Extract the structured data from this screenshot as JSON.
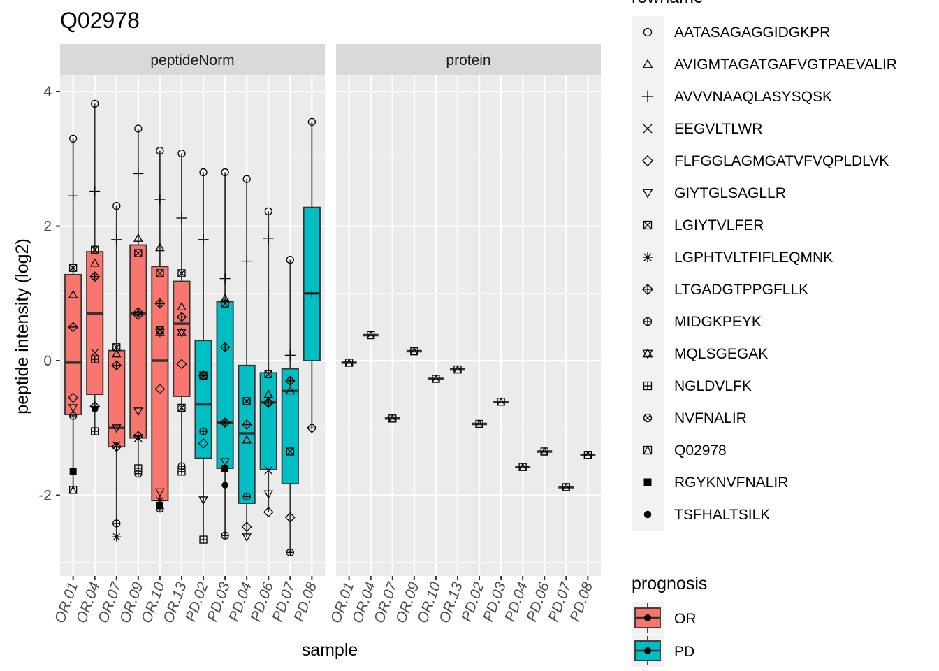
{
  "title": "Q02978",
  "chart_data": {
    "type": "box",
    "title": "Q02978",
    "xlabel": "sample",
    "ylabel": "peptide intensity (log2)",
    "ylim": [
      -3.2,
      4.25
    ],
    "yticks": [
      -2,
      0,
      2,
      4
    ],
    "grid": true,
    "legend_position": "right",
    "panels": [
      "peptideNorm",
      "protein"
    ],
    "categories": [
      "OR.01",
      "OR.04",
      "OR.07",
      "OR.09",
      "OR.10",
      "OR.13",
      "PD.02",
      "PD.03",
      "PD.04",
      "PD.06",
      "PD.07",
      "PD.08"
    ],
    "prognosis": [
      "OR",
      "OR",
      "OR",
      "OR",
      "OR",
      "OR",
      "PD",
      "PD",
      "PD",
      "PD",
      "PD",
      "PD"
    ],
    "colors": {
      "OR": "#F8766D",
      "PD": "#00BFC4"
    },
    "rownames": [
      {
        "name": "AATASAGAGGIDGKPR",
        "shape": "circle"
      },
      {
        "name": "AVIGMTAGATGAFVGTPAEVALIR",
        "shape": "triangle"
      },
      {
        "name": "AVVVNAAQLASYSQSK",
        "shape": "plus"
      },
      {
        "name": "EEGVLTLWR",
        "shape": "cross"
      },
      {
        "name": "FLFGGLAGMGATVFVQPLDLVK",
        "shape": "diamond"
      },
      {
        "name": "GIYTGLSAGLLR",
        "shape": "triangle-down"
      },
      {
        "name": "LGIYTVLFER",
        "shape": "square-cross"
      },
      {
        "name": "LGPHTVLTFIFLEQMNK",
        "shape": "asterisk"
      },
      {
        "name": "LTGADGTPPGFLLK",
        "shape": "diamond-plus"
      },
      {
        "name": "MIDGKPEYK",
        "shape": "circle-plus"
      },
      {
        "name": "MQLSGEGAK",
        "shape": "star-of-david"
      },
      {
        "name": "NGLDVLFK",
        "shape": "square-plus"
      },
      {
        "name": "NVFNALIR",
        "shape": "circle-cross"
      },
      {
        "name": "Q02978",
        "shape": "square-triangle"
      },
      {
        "name": "RGYKNVFNALIR",
        "shape": "square-filled"
      },
      {
        "name": "TSFHALTSILK",
        "shape": "circle-filled"
      }
    ],
    "legends": {
      "shape_title": "rowname",
      "fill_title": "prognosis",
      "fill_items": [
        "OR",
        "PD"
      ]
    },
    "peptideNorm": {
      "boxes": [
        {
          "sample": "OR.01",
          "q1": -0.8,
          "median": -0.03,
          "q3": 1.28,
          "lower": -1.9,
          "upper": 3.3
        },
        {
          "sample": "OR.04",
          "q1": -0.5,
          "median": 0.7,
          "q3": 1.62,
          "lower": -1.05,
          "upper": 3.82
        },
        {
          "sample": "OR.07",
          "q1": -1.28,
          "median": -1.0,
          "q3": 0.15,
          "lower": -2.62,
          "upper": 2.3
        },
        {
          "sample": "OR.09",
          "q1": -1.15,
          "median": 0.7,
          "q3": 1.72,
          "lower": -1.68,
          "upper": 3.45
        },
        {
          "sample": "OR.10",
          "q1": -2.08,
          "median": 0.0,
          "q3": 1.4,
          "lower": -2.2,
          "upper": 3.12
        },
        {
          "sample": "OR.13",
          "q1": -0.53,
          "median": 0.55,
          "q3": 1.18,
          "lower": -1.65,
          "upper": 3.08
        },
        {
          "sample": "PD.02",
          "q1": -1.45,
          "median": -0.65,
          "q3": 0.3,
          "lower": -2.66,
          "upper": 2.8
        },
        {
          "sample": "PD.03",
          "q1": -1.6,
          "median": -0.92,
          "q3": 0.88,
          "lower": -2.6,
          "upper": 2.8
        },
        {
          "sample": "PD.04",
          "q1": -2.12,
          "median": -1.08,
          "q3": -0.07,
          "lower": -2.62,
          "upper": 2.7
        },
        {
          "sample": "PD.06",
          "q1": -1.62,
          "median": -0.62,
          "q3": -0.18,
          "lower": -2.25,
          "upper": 2.22
        },
        {
          "sample": "PD.07",
          "q1": -1.83,
          "median": -0.45,
          "q3": -0.12,
          "lower": -2.85,
          "upper": 1.5
        },
        {
          "sample": "PD.08",
          "q1": 0.0,
          "median": 1.0,
          "q3": 2.28,
          "lower": -1.0,
          "upper": 3.55
        }
      ],
      "points": [
        {
          "sample": "OR.01",
          "peptide": "AATASAGAGGIDGKPR",
          "y": 3.3
        },
        {
          "sample": "OR.01",
          "peptide": "AVVVNAAQLASYSQSK",
          "y": 2.45
        },
        {
          "sample": "OR.01",
          "peptide": "LGIYTVLFER",
          "y": 1.38
        },
        {
          "sample": "OR.01",
          "peptide": "AVIGMTAGATGAFVGTPAEVALIR",
          "y": 0.98
        },
        {
          "sample": "OR.01",
          "peptide": "LTGADGTPPGFLLK",
          "y": 0.5
        },
        {
          "sample": "OR.01",
          "peptide": "FLFGGLAGMGATVFVQPLDLVK",
          "y": -0.55
        },
        {
          "sample": "OR.01",
          "peptide": "GIYTGLSAGLLR",
          "y": -0.7
        },
        {
          "sample": "OR.01",
          "peptide": "MIDGKPEYK",
          "y": -0.82
        },
        {
          "sample": "OR.01",
          "peptide": "RGYKNVFNALIR",
          "y": -1.65
        },
        {
          "sample": "OR.01",
          "peptide": "Q02978",
          "y": -1.92
        },
        {
          "sample": "OR.04",
          "peptide": "AATASAGAGGIDGKPR",
          "y": 3.82
        },
        {
          "sample": "OR.04",
          "peptide": "AVVVNAAQLASYSQSK",
          "y": 2.52
        },
        {
          "sample": "OR.04",
          "peptide": "LGIYTVLFER",
          "y": 1.65
        },
        {
          "sample": "OR.04",
          "peptide": "AVIGMTAGATGAFVGTPAEVALIR",
          "y": 1.45
        },
        {
          "sample": "OR.04",
          "peptide": "LTGADGTPPGFLLK",
          "y": 1.25
        },
        {
          "sample": "OR.04",
          "peptide": "EEGVLTLWR",
          "y": 0.12
        },
        {
          "sample": "OR.04",
          "peptide": "NGLDVLFK",
          "y": 0.02
        },
        {
          "sample": "OR.04",
          "peptide": "LTGADGTPPGFLLK",
          "y": -0.68
        },
        {
          "sample": "OR.04",
          "peptide": "TSFHALTSILK",
          "y": -0.72
        },
        {
          "sample": "OR.04",
          "peptide": "NGLDVLFK",
          "y": -1.05
        },
        {
          "sample": "OR.07",
          "peptide": "AATASAGAGGIDGKPR",
          "y": 2.3
        },
        {
          "sample": "OR.07",
          "peptide": "AVVVNAAQLASYSQSK",
          "y": 1.8
        },
        {
          "sample": "OR.07",
          "peptide": "LGIYTVLFER",
          "y": 0.2
        },
        {
          "sample": "OR.07",
          "peptide": "AVIGMTAGATGAFVGTPAEVALIR",
          "y": 0.1
        },
        {
          "sample": "OR.07",
          "peptide": "LTGADGTPPGFLLK",
          "y": -0.07
        },
        {
          "sample": "OR.07",
          "peptide": "GIYTGLSAGLLR",
          "y": -1.0
        },
        {
          "sample": "OR.07",
          "peptide": "EEGVLTLWR",
          "y": -1.26
        },
        {
          "sample": "OR.07",
          "peptide": "LTGADGTPPGFLLK",
          "y": -1.28
        },
        {
          "sample": "OR.07",
          "peptide": "MIDGKPEYK",
          "y": -2.42
        },
        {
          "sample": "OR.07",
          "peptide": "LGPHTVLTFIFLEQMNK",
          "y": -2.62
        },
        {
          "sample": "OR.09",
          "peptide": "AATASAGAGGIDGKPR",
          "y": 3.45
        },
        {
          "sample": "OR.09",
          "peptide": "AVVVNAAQLASYSQSK",
          "y": 2.78
        },
        {
          "sample": "OR.09",
          "peptide": "AVIGMTAGATGAFVGTPAEVALIR",
          "y": 1.82
        },
        {
          "sample": "OR.09",
          "peptide": "LGIYTVLFER",
          "y": 1.6
        },
        {
          "sample": "OR.09",
          "peptide": "LTGADGTPPGFLLK",
          "y": 0.72
        },
        {
          "sample": "OR.09",
          "peptide": "FLFGGLAGMGATVFVQPLDLVK",
          "y": 0.68
        },
        {
          "sample": "OR.09",
          "peptide": "GIYTGLSAGLLR",
          "y": -0.75
        },
        {
          "sample": "OR.09",
          "peptide": "LTGADGTPPGFLLK",
          "y": -1.12
        },
        {
          "sample": "OR.09",
          "peptide": "EEGVLTLWR",
          "y": -1.15
        },
        {
          "sample": "OR.09",
          "peptide": "NGLDVLFK",
          "y": -1.6
        },
        {
          "sample": "OR.09",
          "peptide": "MIDGKPEYK",
          "y": -1.68
        },
        {
          "sample": "OR.10",
          "peptide": "AATASAGAGGIDGKPR",
          "y": 3.12
        },
        {
          "sample": "OR.10",
          "peptide": "AVVVNAAQLASYSQSK",
          "y": 2.4
        },
        {
          "sample": "OR.10",
          "peptide": "AVIGMTAGATGAFVGTPAEVALIR",
          "y": 1.68
        },
        {
          "sample": "OR.10",
          "peptide": "LGIYTVLFER",
          "y": 1.3
        },
        {
          "sample": "OR.10",
          "peptide": "LTGADGTPPGFLLK",
          "y": 0.85
        },
        {
          "sample": "OR.10",
          "peptide": "LGIYTVLFER",
          "y": 0.45
        },
        {
          "sample": "OR.10",
          "peptide": "MQLSGEGAK",
          "y": 0.42
        },
        {
          "sample": "OR.10",
          "peptide": "FLFGGLAGMGATVFVQPLDLVK",
          "y": -0.42
        },
        {
          "sample": "OR.10",
          "peptide": "GIYTGLSAGLLR",
          "y": -1.95
        },
        {
          "sample": "OR.10",
          "peptide": "LGPHTVLTFIFLEQMNK",
          "y": -2.08
        },
        {
          "sample": "OR.10",
          "peptide": "RGYKNVFNALIR",
          "y": -2.15
        },
        {
          "sample": "OR.10",
          "peptide": "MIDGKPEYK",
          "y": -2.2
        },
        {
          "sample": "OR.13",
          "peptide": "AATASAGAGGIDGKPR",
          "y": 3.08
        },
        {
          "sample": "OR.13",
          "peptide": "AVVVNAAQLASYSQSK",
          "y": 2.12
        },
        {
          "sample": "OR.13",
          "peptide": "LGIYTVLFER",
          "y": 1.3
        },
        {
          "sample": "OR.13",
          "peptide": "AVIGMTAGATGAFVGTPAEVALIR",
          "y": 0.8
        },
        {
          "sample": "OR.13",
          "peptide": "LTGADGTPPGFLLK",
          "y": 0.65
        },
        {
          "sample": "OR.13",
          "peptide": "MQLSGEGAK",
          "y": 0.42
        },
        {
          "sample": "OR.13",
          "peptide": "FLFGGLAGMGATVFVQPLDLVK",
          "y": -0.05
        },
        {
          "sample": "OR.13",
          "peptide": "LGIYTVLFER",
          "y": -0.7
        },
        {
          "sample": "OR.13",
          "peptide": "MIDGKPEYK",
          "y": -1.57
        },
        {
          "sample": "OR.13",
          "peptide": "NGLDVLFK",
          "y": -1.65
        },
        {
          "sample": "PD.02",
          "peptide": "AATASAGAGGIDGKPR",
          "y": 2.8
        },
        {
          "sample": "PD.02",
          "peptide": "AVVVNAAQLASYSQSK",
          "y": 1.8
        },
        {
          "sample": "PD.02",
          "peptide": "LGIYTVLFER",
          "y": -0.22
        },
        {
          "sample": "PD.02",
          "peptide": "LTGADGTPPGFLLK",
          "y": -0.22
        },
        {
          "sample": "PD.02",
          "peptide": "MIDGKPEYK",
          "y": -1.05
        },
        {
          "sample": "PD.02",
          "peptide": "FLFGGLAGMGATVFVQPLDLVK",
          "y": -1.23
        },
        {
          "sample": "PD.02",
          "peptide": "GIYTGLSAGLLR",
          "y": -2.07
        },
        {
          "sample": "PD.02",
          "peptide": "NGLDVLFK",
          "y": -2.66
        },
        {
          "sample": "PD.03",
          "peptide": "AATASAGAGGIDGKPR",
          "y": 2.8
        },
        {
          "sample": "PD.03",
          "peptide": "AVVVNAAQLASYSQSK",
          "y": 1.22
        },
        {
          "sample": "PD.03",
          "peptide": "AVIGMTAGATGAFVGTPAEVALIR",
          "y": 0.92
        },
        {
          "sample": "PD.03",
          "peptide": "LGIYTVLFER",
          "y": 0.85
        },
        {
          "sample": "PD.03",
          "peptide": "LTGADGTPPGFLLK",
          "y": 0.2
        },
        {
          "sample": "PD.03",
          "peptide": "LTGADGTPPGFLLK",
          "y": -0.92
        },
        {
          "sample": "PD.03",
          "peptide": "GIYTGLSAGLLR",
          "y": -1.5
        },
        {
          "sample": "PD.03",
          "peptide": "RGYKNVFNALIR",
          "y": -1.6
        },
        {
          "sample": "PD.03",
          "peptide": "TSFHALTSILK",
          "y": -1.85
        },
        {
          "sample": "PD.03",
          "peptide": "MIDGKPEYK",
          "y": -2.6
        },
        {
          "sample": "PD.04",
          "peptide": "AATASAGAGGIDGKPR",
          "y": 2.7
        },
        {
          "sample": "PD.04",
          "peptide": "AVVVNAAQLASYSQSK",
          "y": 1.48
        },
        {
          "sample": "PD.04",
          "peptide": "LGIYTVLFER",
          "y": -0.6
        },
        {
          "sample": "PD.04",
          "peptide": "LTGADGTPPGFLLK",
          "y": -0.95
        },
        {
          "sample": "PD.04",
          "peptide": "AVIGMTAGATGAFVGTPAEVALIR",
          "y": -1.18
        },
        {
          "sample": "PD.04",
          "peptide": "MIDGKPEYK",
          "y": -2.02
        },
        {
          "sample": "PD.04",
          "peptide": "FLFGGLAGMGATVFVQPLDLVK",
          "y": -2.47
        },
        {
          "sample": "PD.04",
          "peptide": "GIYTGLSAGLLR",
          "y": -2.62
        },
        {
          "sample": "PD.06",
          "peptide": "AATASAGAGGIDGKPR",
          "y": 2.22
        },
        {
          "sample": "PD.06",
          "peptide": "AVVVNAAQLASYSQSK",
          "y": 1.82
        },
        {
          "sample": "PD.06",
          "peptide": "LGIYTVLFER",
          "y": -0.2
        },
        {
          "sample": "PD.06",
          "peptide": "AVIGMTAGATGAFVGTPAEVALIR",
          "y": -0.5
        },
        {
          "sample": "PD.06",
          "peptide": "FLFGGLAGMGATVFVQPLDLVK",
          "y": -0.62
        },
        {
          "sample": "PD.06",
          "peptide": "LTGADGTPPGFLLK",
          "y": -0.63
        },
        {
          "sample": "PD.06",
          "peptide": "EEGVLTLWR",
          "y": -1.63
        },
        {
          "sample": "PD.06",
          "peptide": "GIYTGLSAGLLR",
          "y": -1.98
        },
        {
          "sample": "PD.06",
          "peptide": "FLFGGLAGMGATVFVQPLDLVK",
          "y": -2.25
        },
        {
          "sample": "PD.07",
          "peptide": "AATASAGAGGIDGKPR",
          "y": 1.5
        },
        {
          "sample": "PD.07",
          "peptide": "AVVVNAAQLASYSQSK",
          "y": 0.08
        },
        {
          "sample": "PD.07",
          "peptide": "LTGADGTPPGFLLK",
          "y": -0.3
        },
        {
          "sample": "PD.07",
          "peptide": "AVIGMTAGATGAFVGTPAEVALIR",
          "y": -0.45
        },
        {
          "sample": "PD.07",
          "peptide": "LGIYTVLFER",
          "y": -1.35
        },
        {
          "sample": "PD.07",
          "peptide": "FLFGGLAGMGATVFVQPLDLVK",
          "y": -2.33
        },
        {
          "sample": "PD.07",
          "peptide": "MIDGKPEYK",
          "y": -2.85
        },
        {
          "sample": "PD.08",
          "peptide": "AATASAGAGGIDGKPR",
          "y": 3.55
        },
        {
          "sample": "PD.08",
          "peptide": "AVVVNAAQLASYSQSK",
          "y": 1.0
        },
        {
          "sample": "PD.08",
          "peptide": "LTGADGTPPGFLLK",
          "y": -1.0
        }
      ]
    },
    "protein": {
      "values": [
        {
          "sample": "OR.01",
          "y": -0.03
        },
        {
          "sample": "OR.04",
          "y": 0.38
        },
        {
          "sample": "OR.07",
          "y": -0.86
        },
        {
          "sample": "OR.09",
          "y": 0.14
        },
        {
          "sample": "OR.10",
          "y": -0.27
        },
        {
          "sample": "OR.13",
          "y": -0.13
        },
        {
          "sample": "PD.02",
          "y": -0.94
        },
        {
          "sample": "PD.03",
          "y": -0.61
        },
        {
          "sample": "PD.04",
          "y": -1.58
        },
        {
          "sample": "PD.06",
          "y": -1.35
        },
        {
          "sample": "PD.07",
          "y": -1.88
        },
        {
          "sample": "PD.08",
          "y": -1.4
        }
      ]
    }
  }
}
